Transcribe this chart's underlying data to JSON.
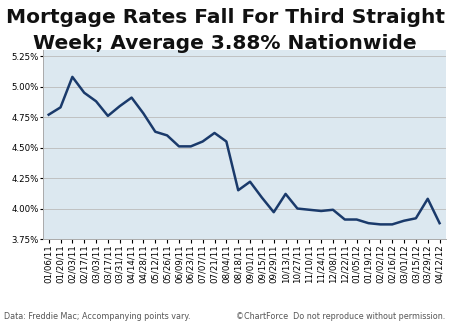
{
  "title_line1": "Mortgage Rates Fall For Third Straight",
  "title_line2": "Week; Average 3.88% Nationwide",
  "footer_left": "Data: Freddie Mac; Accompanying points vary.",
  "footer_right": "©ChartForce  Do not reproduce without permission.",
  "line_color": "#1a3a6b",
  "line_width": 1.8,
  "bg_color": "#ffffff",
  "plot_bg_color": "#dce8f0",
  "ylim": [
    3.75,
    5.3
  ],
  "yticks": [
    3.75,
    4.0,
    4.25,
    4.5,
    4.75,
    5.0,
    5.25
  ],
  "ytick_labels": [
    "3.75%",
    "4.00%",
    "4.25%",
    "4.50%",
    "4.75%",
    "5.00%",
    "5.25%"
  ],
  "dates": [
    "01/06/11",
    "01/20/11",
    "02/03/11",
    "02/17/11",
    "03/03/11",
    "03/17/11",
    "03/31/11",
    "04/14/11",
    "04/28/11",
    "05/12/11",
    "05/26/11",
    "06/09/11",
    "06/23/11",
    "07/07/11",
    "07/21/11",
    "08/04/11",
    "08/18/11",
    "09/01/11",
    "09/15/11",
    "09/29/11",
    "10/13/11",
    "10/27/11",
    "11/10/11",
    "11/24/11",
    "12/08/11",
    "12/22/11",
    "01/05/12",
    "01/19/12",
    "02/02/12",
    "02/16/12",
    "03/01/12",
    "03/15/12",
    "03/29/12",
    "04/12/12"
  ],
  "values": [
    4.77,
    4.83,
    5.08,
    4.95,
    4.88,
    4.76,
    4.84,
    4.91,
    4.78,
    4.63,
    4.6,
    4.51,
    4.51,
    4.55,
    4.62,
    4.55,
    4.15,
    4.22,
    4.09,
    3.97,
    4.12,
    4.0,
    3.99,
    3.98,
    3.99,
    3.91,
    3.91,
    3.88,
    3.87,
    3.87,
    3.9,
    3.92,
    4.08,
    3.88
  ],
  "grid_color": "#bbbbbb",
  "title_fontsize": 14.5,
  "tick_fontsize": 6.2,
  "footer_fontsize": 5.8
}
